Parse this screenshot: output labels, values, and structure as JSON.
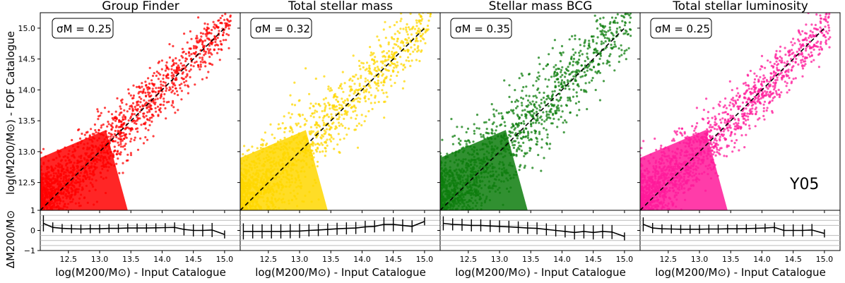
{
  "figure": {
    "ylabel_top": "log(M200/M⊙) - FOF Catalogue",
    "ylabel_bottom": "ΔM200/M⊙",
    "xlabel": "log(M200/M⊙) - Input Catalogue",
    "sample_label": "Y05"
  },
  "chart_data": [
    {
      "type": "scatter",
      "title": "Group Finder",
      "color": "#ff0000",
      "sigma_label": "σM = 0.25",
      "sigma_value": 0.25,
      "xlim": [
        12.05,
        15.25
      ],
      "ylim": [
        12.05,
        15.25
      ],
      "xticks": [
        12.5,
        13.0,
        13.5,
        14.0,
        14.5,
        15.0
      ],
      "yticks": [
        12.5,
        13.0,
        13.5,
        14.0,
        14.5,
        15.0
      ],
      "reference_line": "y = x",
      "residual_ylim": [
        -1,
        1
      ],
      "residual_yticks": [
        -1,
        0,
        1
      ],
      "residuals": {
        "x": [
          12.1,
          12.25,
          12.4,
          12.55,
          12.7,
          12.85,
          13.0,
          13.15,
          13.3,
          13.45,
          13.6,
          13.75,
          13.9,
          14.05,
          14.2,
          14.35,
          14.5,
          14.65,
          14.8,
          15.0
        ],
        "y": [
          0.35,
          0.15,
          0.1,
          0.08,
          0.07,
          0.08,
          0.08,
          0.1,
          0.1,
          0.12,
          0.12,
          0.12,
          0.13,
          0.14,
          0.15,
          0.05,
          0.0,
          0.0,
          0.02,
          -0.2
        ],
        "err": [
          0.4,
          0.25,
          0.22,
          0.22,
          0.22,
          0.22,
          0.22,
          0.22,
          0.22,
          0.22,
          0.22,
          0.22,
          0.22,
          0.22,
          0.25,
          0.3,
          0.3,
          0.3,
          0.35,
          0.2
        ]
      }
    },
    {
      "type": "scatter",
      "title": "Total stellar mass",
      "color": "#ffd700",
      "sigma_label": "σM = 0.32",
      "sigma_value": 0.32,
      "xlim": [
        12.05,
        15.25
      ],
      "ylim": [
        12.05,
        15.25
      ],
      "xticks": [
        12.5,
        13.0,
        13.5,
        14.0,
        14.5,
        15.0
      ],
      "yticks": [
        12.5,
        13.0,
        13.5,
        14.0,
        14.5,
        15.0
      ],
      "reference_line": "y = x",
      "residual_ylim": [
        -1,
        1
      ],
      "residual_yticks": [
        -1,
        0,
        1
      ],
      "residuals": {
        "x": [
          12.1,
          12.25,
          12.4,
          12.55,
          12.7,
          12.85,
          13.0,
          13.15,
          13.3,
          13.45,
          13.6,
          13.75,
          13.9,
          14.05,
          14.2,
          14.35,
          14.5,
          14.65,
          14.8,
          15.0
        ],
        "y": [
          -0.05,
          -0.05,
          -0.05,
          -0.05,
          -0.05,
          -0.04,
          -0.03,
          0.0,
          0.02,
          0.05,
          0.08,
          0.1,
          0.12,
          0.18,
          0.2,
          0.3,
          0.3,
          0.25,
          0.2,
          0.45
        ],
        "err": [
          0.4,
          0.35,
          0.35,
          0.35,
          0.35,
          0.35,
          0.35,
          0.3,
          0.3,
          0.3,
          0.3,
          0.3,
          0.3,
          0.3,
          0.3,
          0.35,
          0.35,
          0.3,
          0.3,
          0.2
        ]
      }
    },
    {
      "type": "scatter",
      "title": "Stellar mass BCG",
      "color": "#0d7d0d",
      "sigma_label": "σM = 0.35",
      "sigma_value": 0.35,
      "xlim": [
        12.05,
        15.25
      ],
      "ylim": [
        12.05,
        15.25
      ],
      "xticks": [
        12.5,
        13.0,
        13.5,
        14.0,
        14.5,
        15.0
      ],
      "yticks": [
        12.5,
        13.0,
        13.5,
        14.0,
        14.5,
        15.0
      ],
      "reference_line": "y = x",
      "residual_ylim": [
        -1,
        1
      ],
      "residual_yticks": [
        -1,
        0,
        1
      ],
      "residuals": {
        "x": [
          12.1,
          12.25,
          12.4,
          12.55,
          12.7,
          12.85,
          13.0,
          13.15,
          13.3,
          13.45,
          13.6,
          13.75,
          13.9,
          14.05,
          14.2,
          14.35,
          14.5,
          14.65,
          14.8,
          15.0
        ],
        "y": [
          0.35,
          0.3,
          0.28,
          0.25,
          0.25,
          0.22,
          0.2,
          0.18,
          0.15,
          0.12,
          0.1,
          0.05,
          0.0,
          -0.05,
          -0.1,
          -0.05,
          -0.1,
          -0.05,
          -0.08,
          -0.3
        ],
        "err": [
          0.35,
          0.3,
          0.3,
          0.3,
          0.3,
          0.3,
          0.3,
          0.3,
          0.3,
          0.3,
          0.3,
          0.3,
          0.3,
          0.3,
          0.35,
          0.35,
          0.35,
          0.35,
          0.35,
          0.2
        ]
      }
    },
    {
      "type": "scatter",
      "title": "Total stellar luminosity",
      "color": "#ff1a9a",
      "sigma_label": "σM = 0.25",
      "sigma_value": 0.25,
      "xlim": [
        12.05,
        15.25
      ],
      "ylim": [
        12.05,
        15.25
      ],
      "xticks": [
        12.5,
        13.0,
        13.5,
        14.0,
        14.5,
        15.0
      ],
      "yticks": [
        12.5,
        13.0,
        13.5,
        14.0,
        14.5,
        15.0
      ],
      "reference_line": "y = x",
      "residual_ylim": [
        -1,
        1
      ],
      "residual_yticks": [
        -1,
        0,
        1
      ],
      "residuals": {
        "x": [
          12.1,
          12.25,
          12.4,
          12.55,
          12.7,
          12.85,
          13.0,
          13.15,
          13.3,
          13.45,
          13.6,
          13.75,
          13.9,
          14.05,
          14.2,
          14.35,
          14.5,
          14.65,
          14.8,
          15.0
        ],
        "y": [
          0.3,
          0.12,
          0.08,
          0.07,
          0.06,
          0.06,
          0.06,
          0.07,
          0.07,
          0.08,
          0.08,
          0.09,
          0.1,
          0.12,
          0.15,
          0.0,
          0.0,
          0.0,
          0.02,
          -0.15
        ],
        "err": [
          0.35,
          0.25,
          0.22,
          0.22,
          0.22,
          0.22,
          0.22,
          0.22,
          0.22,
          0.22,
          0.22,
          0.22,
          0.22,
          0.22,
          0.25,
          0.3,
          0.3,
          0.3,
          0.3,
          0.2
        ]
      }
    }
  ]
}
